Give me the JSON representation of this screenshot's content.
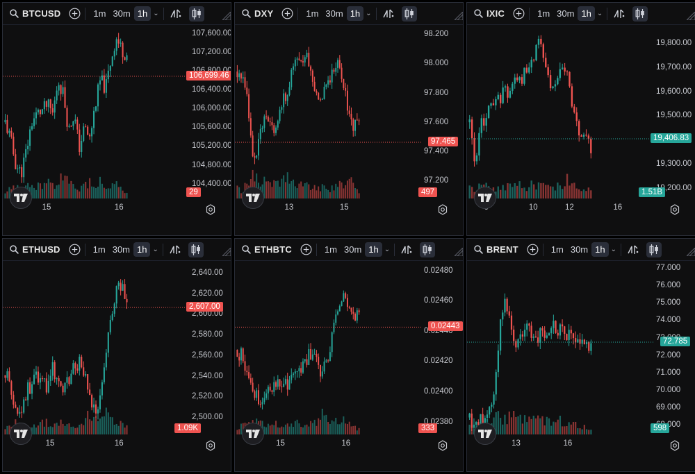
{
  "toolbar": {
    "intervals": [
      "1m",
      "30m",
      "1h"
    ],
    "active_interval": "1h"
  },
  "colors": {
    "up": "#26a69a",
    "down": "#ef5350"
  },
  "panels": [
    {
      "symbol": "BTCUSD",
      "y_ticks": [
        "107,600.00",
        "107,200.00",
        "106,800.00",
        "106,400.00",
        "106,000.00",
        "105,600.00",
        "105,200.00",
        "104,800.00",
        "104,400.00"
      ],
      "y_min": 104100,
      "y_max": 107700,
      "price": "106,699.46",
      "price_value": 106699.46,
      "price_dir": "down",
      "volume": "29",
      "volume_dir": "down",
      "x_labels": [
        {
          "text": "15",
          "at": 0.18
        },
        {
          "text": "16",
          "at": 0.6
        }
      ],
      "candles": 60,
      "seed": 11,
      "path": [
        0.45,
        0.35,
        0.2,
        0.15,
        0.28,
        0.45,
        0.5,
        0.52,
        0.55,
        0.5,
        0.7,
        0.62,
        0.4,
        0.5,
        0.3,
        0.42,
        0.35,
        0.55,
        0.7,
        0.65,
        0.82,
        0.95,
        0.88,
        0.85
      ],
      "vol_path": [
        0.2,
        0.25,
        0.3,
        0.35,
        0.3,
        0.4,
        0.35,
        0.3,
        0.45,
        0.35,
        0.45,
        0.55,
        0.4,
        0.3,
        0.25,
        0.35,
        0.45,
        0.4,
        0.5,
        0.3,
        0.35,
        0.4,
        0.25,
        0.15
      ]
    },
    {
      "symbol": "DXY",
      "y_ticks": [
        "98.200",
        "98.000",
        "97.800",
        "97.600",
        "97.400",
        "97.200"
      ],
      "y_min": 97.08,
      "y_max": 98.24,
      "price": "97.465",
      "price_value": 97.465,
      "price_dir": "down",
      "volume": "497",
      "volume_dir": "down",
      "x_labels": [
        {
          "text": "13",
          "at": 0.24
        },
        {
          "text": "15",
          "at": 0.56
        }
      ],
      "candles": 64,
      "seed": 23,
      "path": [
        0.75,
        0.7,
        0.55,
        0.2,
        0.35,
        0.45,
        0.45,
        0.42,
        0.5,
        0.6,
        0.7,
        0.82,
        0.78,
        0.88,
        0.72,
        0.6,
        0.62,
        0.7,
        0.75,
        0.8,
        0.7,
        0.5,
        0.42,
        0.45
      ],
      "vol_path": [
        0.3,
        0.2,
        0.5,
        0.7,
        0.4,
        0.5,
        0.3,
        0.4,
        0.35,
        0.5,
        0.55,
        0.4,
        0.35,
        0.4,
        0.3,
        0.35,
        0.3,
        0.25,
        0.3,
        0.35,
        0.4,
        0.55,
        0.35,
        0.2
      ]
    },
    {
      "symbol": "IXIC",
      "y_ticks": [
        "19,800.00",
        "19,700.00",
        "19,600.00",
        "19,500.00",
        "19,400.00",
        "19,300.00",
        "19,200.00"
      ],
      "y_min": 19160,
      "y_max": 19860,
      "price": "19,406.83",
      "price_value": 19406.83,
      "price_dir": "up",
      "volume": "1.51B",
      "volume_dir": "up",
      "x_labels": [
        {
          "text": "6",
          "at": 0.05
        },
        {
          "text": "10",
          "at": 0.31
        },
        {
          "text": "12",
          "at": 0.52
        },
        {
          "text": "16",
          "at": 0.8
        }
      ],
      "candles": 52,
      "seed": 37,
      "path": [
        0.45,
        0.15,
        0.45,
        0.5,
        0.55,
        0.58,
        0.62,
        0.65,
        0.7,
        0.72,
        0.75,
        0.85,
        0.92,
        0.8,
        0.65,
        0.72,
        0.74,
        0.72,
        0.5,
        0.35,
        0.38,
        0.3
      ],
      "vol_path": [
        0.3,
        0.2,
        0.35,
        0.3,
        0.3,
        0.25,
        0.35,
        0.3,
        0.3,
        0.35,
        0.3,
        0.4,
        0.35,
        0.3,
        0.3,
        0.35,
        0.3,
        0.55,
        0.35,
        0.3,
        0.25,
        0.3
      ]
    },
    {
      "symbol": "ETHUSD",
      "y_ticks": [
        "2,640.00",
        "2,620.00",
        "2,600.00",
        "2,580.00",
        "2,560.00",
        "2,540.00",
        "2,520.00",
        "2,500.00"
      ],
      "y_min": 2484,
      "y_max": 2648,
      "price": "2,607.00",
      "price_value": 2607.0,
      "price_dir": "down",
      "volume": "1.09K",
      "volume_dir": "down",
      "x_labels": [
        {
          "text": "15",
          "at": 0.2
        },
        {
          "text": "16",
          "at": 0.6
        }
      ],
      "candles": 60,
      "seed": 53,
      "path": [
        0.35,
        0.3,
        0.15,
        0.12,
        0.25,
        0.3,
        0.35,
        0.3,
        0.28,
        0.4,
        0.32,
        0.25,
        0.32,
        0.4,
        0.42,
        0.35,
        0.2,
        0.12,
        0.25,
        0.45,
        0.7,
        0.85,
        0.88,
        0.78
      ],
      "vol_path": [
        0.2,
        0.25,
        0.3,
        0.2,
        0.25,
        0.2,
        0.25,
        0.3,
        0.3,
        0.25,
        0.35,
        0.3,
        0.25,
        0.2,
        0.3,
        0.35,
        0.55,
        0.4,
        0.3,
        0.6,
        0.45,
        0.3,
        0.25,
        0.2
      ]
    },
    {
      "symbol": "ETHBTC",
      "y_ticks": [
        "0.02480",
        "0.02460",
        "0.02440",
        "0.02420",
        "0.02400",
        "0.02380"
      ],
      "y_min": 0.02372,
      "y_max": 0.02484,
      "price": "0.02443",
      "price_value": 0.02443,
      "price_dir": "down",
      "volume": "333",
      "volume_dir": "down",
      "x_labels": [
        {
          "text": "15",
          "at": 0.19
        },
        {
          "text": "16",
          "at": 0.57
        }
      ],
      "candles": 64,
      "seed": 71,
      "path": [
        0.5,
        0.45,
        0.38,
        0.25,
        0.2,
        0.22,
        0.25,
        0.3,
        0.32,
        0.28,
        0.3,
        0.35,
        0.38,
        0.45,
        0.48,
        0.42,
        0.35,
        0.45,
        0.6,
        0.75,
        0.8,
        0.78,
        0.72,
        0.7
      ],
      "vol_path": [
        0.2,
        0.25,
        0.3,
        0.3,
        0.35,
        0.3,
        0.25,
        0.3,
        0.2,
        0.25,
        0.3,
        0.35,
        0.3,
        0.25,
        0.3,
        0.35,
        0.5,
        0.45,
        0.4,
        0.35,
        0.4,
        0.3,
        0.2,
        0.15
      ]
    },
    {
      "symbol": "BRENT",
      "y_ticks": [
        "77.000",
        "76.000",
        "75.000",
        "74.000",
        "73.000",
        "72.000",
        "71.000",
        "70.000",
        "69.000",
        "68.000"
      ],
      "y_min": 67.5,
      "y_max": 77.2,
      "price": "72.785",
      "price_value": 72.785,
      "price_dir": "up",
      "volume": "598",
      "volume_dir": "up",
      "x_labels": [
        {
          "text": "13",
          "at": 0.21
        },
        {
          "text": "16",
          "at": 0.51
        }
      ],
      "candles": 56,
      "seed": 89,
      "path": [
        0.1,
        0.05,
        0.08,
        0.12,
        0.15,
        0.55,
        0.8,
        0.68,
        0.5,
        0.6,
        0.62,
        0.55,
        0.58,
        0.6,
        0.65,
        0.62,
        0.6,
        0.6,
        0.55,
        0.52,
        0.55,
        0.5
      ],
      "vol_path": [
        0.2,
        0.25,
        0.3,
        0.35,
        0.4,
        0.45,
        0.4,
        0.45,
        0.5,
        0.45,
        0.5,
        0.4,
        0.45,
        0.4,
        0.35,
        0.4,
        0.35,
        0.3,
        0.3,
        0.25,
        0.2,
        0.15
      ]
    }
  ]
}
